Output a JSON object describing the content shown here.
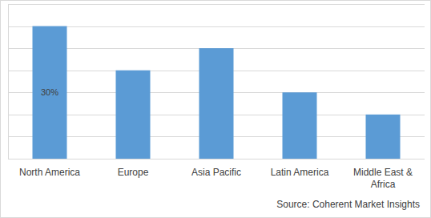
{
  "chart_data": {
    "type": "bar",
    "categories": [
      "North America",
      "Europe",
      "Asia Pacific",
      "Latin America",
      "Middle East & Africa"
    ],
    "values": [
      30,
      20,
      25,
      15,
      10
    ],
    "value_labels": [
      "30%",
      null,
      null,
      null,
      null
    ],
    "data_labels": true,
    "color": "#5b9bd5",
    "ylim": [
      0,
      35
    ],
    "yticks": [
      0,
      5,
      10,
      15,
      20,
      25,
      30,
      35
    ],
    "grid": true,
    "tick_labels": "x",
    "source": "Source: Coherent Market Insights"
  }
}
